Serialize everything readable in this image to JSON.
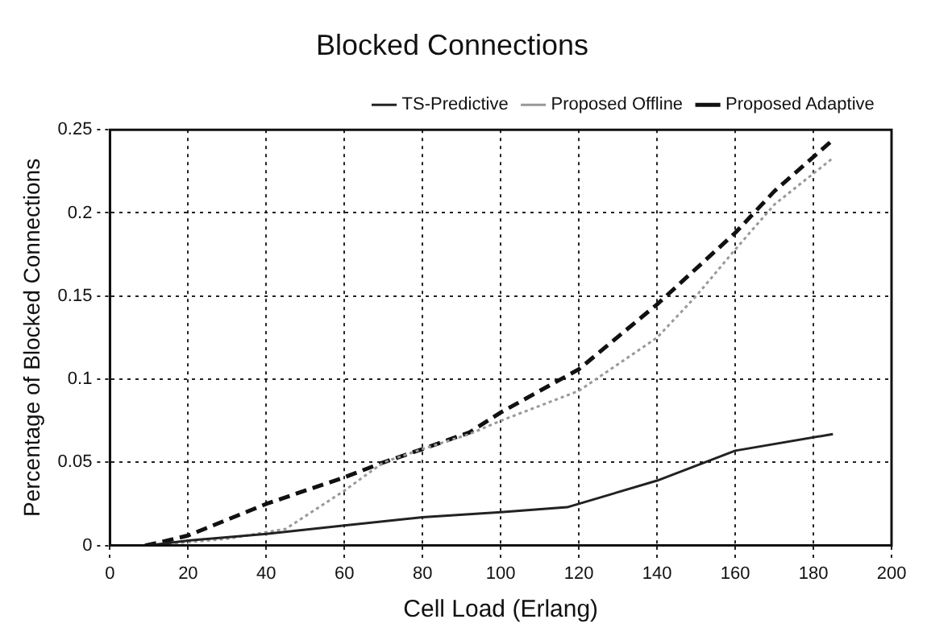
{
  "chart_data": {
    "type": "line",
    "title": "Blocked Connections",
    "xlabel": "Cell Load (Erlang)",
    "ylabel": "Percentage of Blocked Connections",
    "xlim": [
      0,
      200
    ],
    "xticks": [
      0,
      20,
      40,
      60,
      80,
      100,
      120,
      140,
      160,
      180,
      200
    ],
    "ylim": [
      0,
      0.25
    ],
    "yticks": [
      0,
      0.05,
      0.1,
      0.15,
      0.2,
      0.25
    ],
    "grid": true,
    "legend": "top right",
    "marker": "none",
    "series": [
      {
        "name": "TS-Predictive",
        "color": "#222222",
        "line_style": "solid",
        "x": [
          10,
          20,
          40,
          60,
          80,
          100,
          117,
          140,
          160,
          185
        ],
        "values": [
          0,
          0.003,
          0.007,
          0.012,
          0.017,
          0.02,
          0.023,
          0.039,
          0.057,
          0.067
        ]
      },
      {
        "name": "Proposed Offline",
        "color": "#999999",
        "line_style": "dotted",
        "x": [
          10,
          20,
          30,
          45,
          60,
          70,
          80,
          92,
          100,
          120,
          140,
          150,
          160,
          170,
          185
        ],
        "values": [
          0,
          0.002,
          0.004,
          0.01,
          0.033,
          0.05,
          0.058,
          0.067,
          0.075,
          0.093,
          0.125,
          0.15,
          0.178,
          0.205,
          0.233
        ]
      },
      {
        "name": "Proposed Adaptive",
        "color": "#111111",
        "line_style": "dashed",
        "x": [
          9,
          13,
          20,
          40,
          60,
          70,
          80,
          92,
          100,
          120,
          140,
          160,
          170,
          185
        ],
        "values": [
          0,
          0.002,
          0.006,
          0.025,
          0.041,
          0.05,
          0.058,
          0.068,
          0.08,
          0.106,
          0.145,
          0.188,
          0.213,
          0.244
        ]
      }
    ]
  }
}
